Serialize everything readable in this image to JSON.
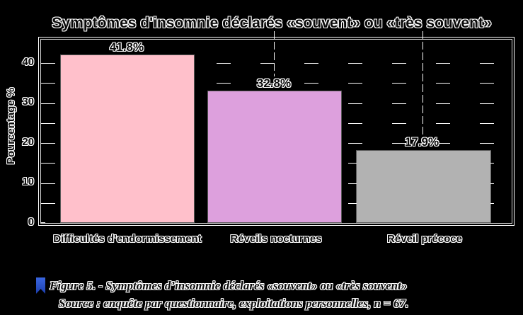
{
  "title": "Symptômes d'insomnie déclarés «souvent» ou «très souvent»",
  "chart_data": {
    "type": "bar",
    "title": "Symptômes d'insomnie déclarés «souvent» ou «très souvent»",
    "categories": [
      "Difficultés d'endormissement",
      "Réveils nocturnes",
      "Réveil précoce"
    ],
    "values": [
      41.8,
      32.8,
      17.9
    ],
    "value_labels": [
      "41.8%",
      "32.8%",
      "17.9%"
    ],
    "bar_colors": [
      "#ffc0cb",
      "#dda0dd",
      "#b2b2b2"
    ],
    "xlabel": "",
    "ylabel": "Pourcentage %",
    "yticks": [
      0,
      10,
      20,
      30,
      40
    ],
    "ylim": [
      0,
      46
    ],
    "grid": "white dashed horizontal lines every 5 units, fragmented",
    "legend": "none",
    "plot_background": "#000000",
    "frame_color": "#ffffff"
  },
  "yaxis": {
    "label": "Pourcentage %",
    "tick_labels": [
      "40",
      "30",
      "20",
      "10",
      "0"
    ]
  },
  "caption": {
    "icon": "bookmark-icon",
    "icon_color": "#2750cc",
    "line1": "Figure 5. - Symptômes d’insomnie déclarés «souvent» ou «très souvent»",
    "line2": "Source : enquête par questionnaire, exploitations personnelles, n = 67."
  }
}
